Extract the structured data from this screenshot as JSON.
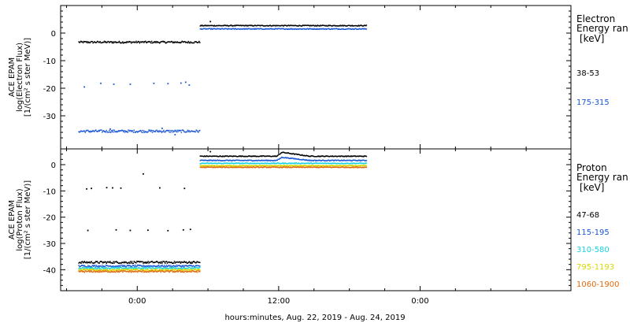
{
  "chart_data": [
    {
      "type": "scatter",
      "panel": "electron",
      "ylabel_lines": [
        "ACE EPAM",
        "log(Electron Flux)",
        "[1/(cm² s ster MeV)]"
      ],
      "legend_title_lines": [
        "Electron",
        "Energy ran"
      ],
      "legend_unit": "[keV]",
      "ylim": [
        -42,
        10
      ],
      "yticks": [
        0,
        -10,
        -20,
        -30
      ],
      "series": [
        {
          "name": "38-53",
          "color": "#000000",
          "segments": [
            {
              "x": [
                -5,
                5.3
              ],
              "level": -3.3,
              "jitter": 0.35
            },
            {
              "x": [
                5.3,
                19.4
              ],
              "level": 2.7,
              "jitter": 0.15
            }
          ],
          "points": [
            [
              6.2,
              4.2
            ]
          ]
        },
        {
          "name": "175-315",
          "color": "#1a56d6",
          "segments": [
            {
              "x": [
                -5,
                5.3
              ],
              "level": -35.6,
              "jitter": 0.45
            },
            {
              "x": [
                5.3,
                19.4
              ],
              "level": 1.5,
              "jitter": 0.15
            }
          ],
          "points": [
            [
              -4.5,
              -19.5
            ],
            [
              -3.1,
              -18.2
            ],
            [
              -2.0,
              -18.5
            ],
            [
              -0.6,
              -18.5
            ],
            [
              1.4,
              -18.2
            ],
            [
              2.6,
              -18.3
            ],
            [
              3.7,
              -18.1
            ],
            [
              4.1,
              -17.8
            ],
            [
              4.4,
              -18.8
            ],
            [
              -2.3,
              -34.8
            ],
            [
              2.1,
              -34.5
            ],
            [
              3.2,
              -36.8
            ]
          ]
        }
      ]
    },
    {
      "type": "scatter",
      "panel": "proton",
      "ylabel_lines": [
        "ACE EPAM",
        "log(Proton Flux)",
        "[1/(cm² s ster MeV)]"
      ],
      "legend_title_lines": [
        "Proton",
        "Energy ran"
      ],
      "legend_unit": "[keV]",
      "ylim": [
        -48,
        6
      ],
      "yticks": [
        0,
        -10,
        -20,
        -30,
        -40
      ],
      "series": [
        {
          "name": "47-68",
          "color": "#000000",
          "segments": [
            {
              "x": [
                -5,
                5.3
              ],
              "level": -37.2,
              "jitter": 0.4
            },
            {
              "x": [
                5.3,
                19.4
              ],
              "level": 3.2,
              "jitter": 0.15
            }
          ],
          "bump": {
            "x": [
              11.8,
              14.6
            ],
            "delta": 1.5
          },
          "points": [
            [
              -4.3,
              -9.2
            ],
            [
              -3.9,
              -9.0
            ],
            [
              -2.6,
              -8.7
            ],
            [
              -2.1,
              -8.8
            ],
            [
              -1.4,
              -8.9
            ],
            [
              0.5,
              -3.5
            ],
            [
              1.9,
              -8.8
            ],
            [
              4.0,
              -9.0
            ],
            [
              -4.2,
              -25.0
            ],
            [
              -1.8,
              -24.8
            ],
            [
              -0.6,
              -25.0
            ],
            [
              0.9,
              -24.9
            ],
            [
              2.6,
              -25.1
            ],
            [
              3.9,
              -24.8
            ],
            [
              4.5,
              -24.6
            ],
            [
              6.2,
              5.0
            ]
          ]
        },
        {
          "name": "115-195",
          "color": "#1a56d6",
          "segments": [
            {
              "x": [
                -5,
                5.3
              ],
              "level": -38.6,
              "jitter": 0.35
            },
            {
              "x": [
                5.3,
                19.4
              ],
              "level": 1.6,
              "jitter": 0.15
            }
          ],
          "bump": {
            "x": [
              11.8,
              14.6
            ],
            "delta": 1.2
          },
          "points": []
        },
        {
          "name": "310-580",
          "color": "#19d3e0",
          "segments": [
            {
              "x": [
                -5,
                5.3
              ],
              "level": -39.4,
              "jitter": 0.3
            },
            {
              "x": [
                5.3,
                19.4
              ],
              "level": 0.5,
              "jitter": 0.15
            }
          ],
          "points": []
        },
        {
          "name": "795-1193",
          "color": "#d8d800",
          "segments": [
            {
              "x": [
                -5,
                5.3
              ],
              "level": -40.1,
              "jitter": 0.3
            },
            {
              "x": [
                5.3,
                19.4
              ],
              "level": -0.4,
              "jitter": 0.15
            }
          ],
          "points": []
        },
        {
          "name": "1060-1900",
          "color": "#e06a10",
          "segments": [
            {
              "x": [
                -5,
                5.3
              ],
              "level": -40.7,
              "jitter": 0.3
            },
            {
              "x": [
                5.3,
                19.4
              ],
              "level": -1.0,
              "jitter": 0.15
            }
          ],
          "points": []
        }
      ]
    }
  ],
  "x_axis": {
    "label": "hours:minutes, Aug. 22, 2019 - Aug. 24, 2019",
    "range_hours": [
      -6.5,
      36.8
    ],
    "ticks": [
      {
        "value": 0,
        "label": "0:00"
      },
      {
        "value": 12,
        "label": "12:00"
      },
      {
        "value": 24,
        "label": "0:00"
      }
    ],
    "minor_step_hours": 3
  }
}
